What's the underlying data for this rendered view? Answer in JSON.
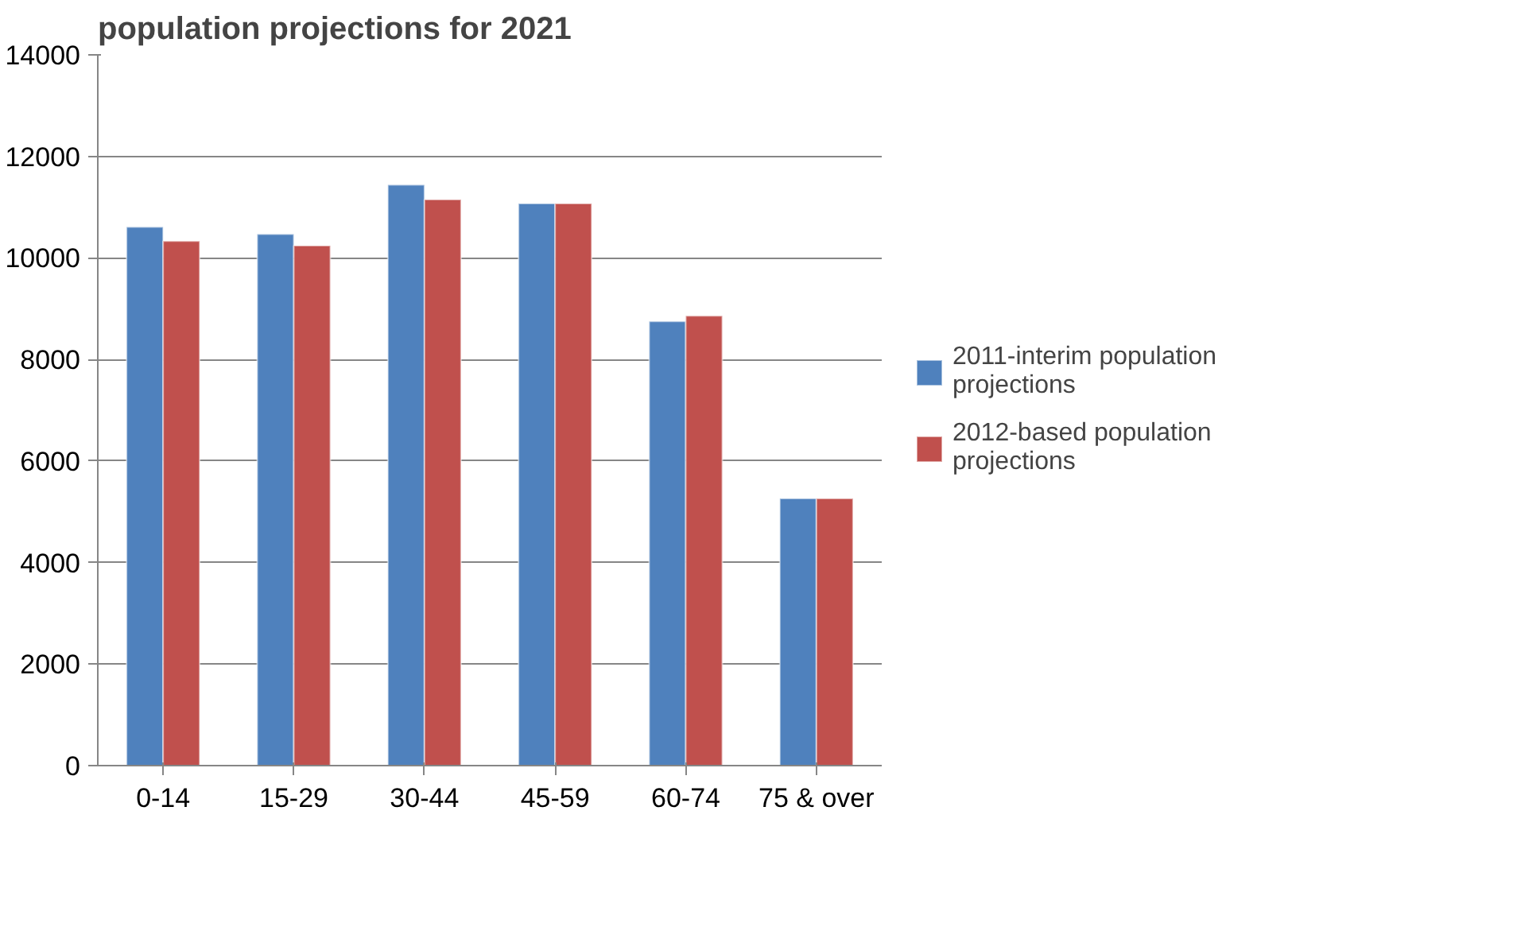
{
  "chart_data": {
    "type": "bar",
    "title": "population projections for 2021",
    "categories": [
      "0-14",
      "15-29",
      "30-44",
      "45-59",
      "60-74",
      "75 & over"
    ],
    "series": [
      {
        "name": "2011-interim population projections",
        "color": "#4f81bd",
        "values": [
          10610,
          10470,
          11440,
          11070,
          8750,
          5260
        ]
      },
      {
        "name": "2012-based population projections",
        "color": "#c0504d",
        "values": [
          10330,
          10240,
          11150,
          11070,
          8860,
          5260
        ]
      }
    ],
    "ylim": [
      0,
      14000
    ],
    "yticks": [
      0,
      2000,
      4000,
      6000,
      8000,
      10000,
      12000,
      14000
    ],
    "grid": "y",
    "legend": "right"
  }
}
